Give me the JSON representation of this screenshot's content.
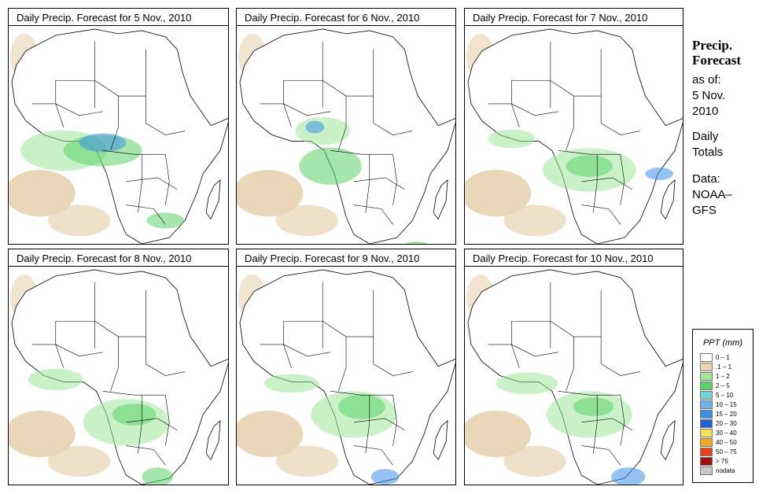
{
  "panels": [
    {
      "title": "Daily Precip. Forecast for  5 Nov., 2010"
    },
    {
      "title": "Daily Precip. Forecast for  6 Nov., 2010"
    },
    {
      "title": "Daily Precip. Forecast for  7 Nov., 2010"
    },
    {
      "title": "Daily Precip. Forecast for  8 Nov., 2010"
    },
    {
      "title": "Daily Precip. Forecast for  9 Nov., 2010"
    },
    {
      "title": "Daily Precip. Forecast for  10 Nov., 2010"
    }
  ],
  "side": {
    "heading1": "Precip.",
    "heading2": "Forecast",
    "asof1": "as of:",
    "asof2": "5 Nov.",
    "asof3": "2010",
    "daily1": "Daily",
    "daily2": "Totals",
    "data1": "Data:",
    "data2": "NOAA–",
    "data3": "GFS"
  },
  "legend": {
    "title": "PPT (mm)",
    "items": [
      {
        "label": "0 – 1",
        "color": "#ffffff"
      },
      {
        "label": ".1 – 1",
        "color": "#e8d3b3"
      },
      {
        "label": "1 – 2",
        "color": "#9fe59a"
      },
      {
        "label": "2 – 5",
        "color": "#5cd16a"
      },
      {
        "label": "5 – 10",
        "color": "#6fd3d3"
      },
      {
        "label": "10 – 15",
        "color": "#6fb2ec"
      },
      {
        "label": "15 – 20",
        "color": "#3f8fe5"
      },
      {
        "label": "20 – 30",
        "color": "#1f5fd0"
      },
      {
        "label": "30 – 40",
        "color": "#f6e05a"
      },
      {
        "label": "40 – 50",
        "color": "#f5a623"
      },
      {
        "label": "50 – 75",
        "color": "#e8401a"
      },
      {
        "label": "> 75",
        "color": "#a01010"
      },
      {
        "label": "nodata",
        "color": "#c8c8c8"
      }
    ]
  },
  "colors": {
    "land": "#ffffff",
    "ocean_dry": "#e8d3b3",
    "light_rain": "#9fe59a",
    "moderate_rain": "#5cd16a",
    "heavy_rain": "#3f8fe5",
    "border": "#000000"
  }
}
